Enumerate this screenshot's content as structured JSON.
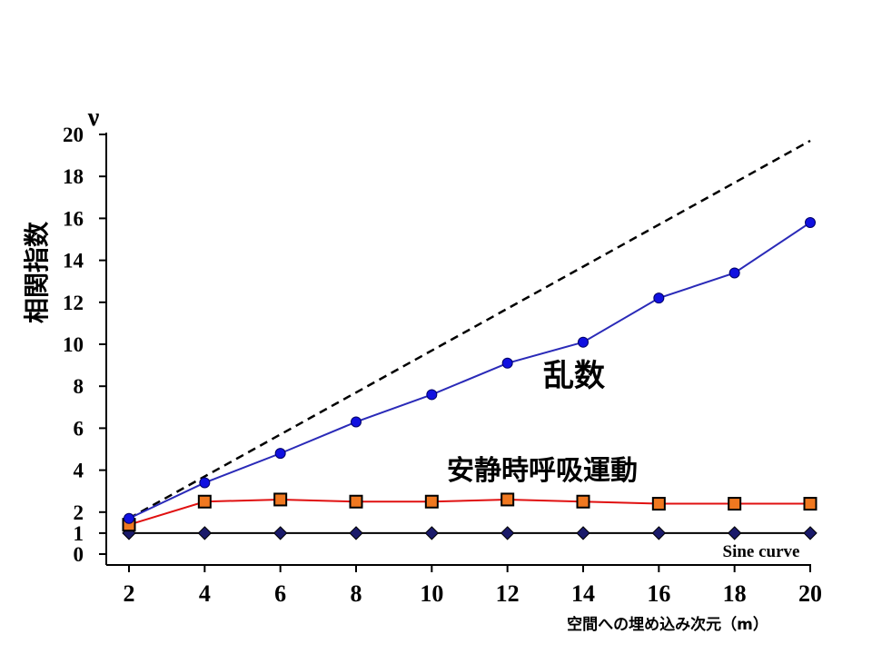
{
  "chart_data": {
    "type": "line",
    "xlabel": "空間への埋め込み次元（m）",
    "ylabel": "相関指数",
    "y_symbol": "ν",
    "xlim": [
      2,
      20
    ],
    "ylim": [
      0,
      20
    ],
    "x_ticks": [
      2,
      4,
      6,
      8,
      10,
      12,
      14,
      16,
      18,
      20
    ],
    "y_ticks": [
      0,
      1,
      2,
      4,
      6,
      8,
      10,
      12,
      14,
      16,
      18,
      20
    ],
    "grid": false,
    "series": [
      {
        "name": "乱数",
        "color": "#2a2ab8",
        "marker": "circle",
        "marker_color": "#1010e0",
        "x": [
          2,
          4,
          6,
          8,
          10,
          12,
          14,
          16,
          18,
          20
        ],
        "y": [
          1.7,
          3.4,
          4.8,
          6.3,
          7.6,
          9.1,
          10.1,
          12.2,
          13.4,
          15.8
        ]
      },
      {
        "name": "安静時呼吸運動",
        "color": "#e01010",
        "marker": "square",
        "marker_color": "#f07820",
        "x": [
          2,
          4,
          6,
          8,
          10,
          12,
          14,
          16,
          18,
          20
        ],
        "y": [
          1.4,
          2.5,
          2.6,
          2.5,
          2.5,
          2.6,
          2.5,
          2.4,
          2.4,
          2.4
        ]
      },
      {
        "name": "Sine curve",
        "color": "#000000",
        "marker": "diamond",
        "marker_color": "#1a1a6a",
        "x": [
          2,
          4,
          6,
          8,
          10,
          12,
          14,
          16,
          18,
          20
        ],
        "y": [
          1,
          1,
          1,
          1,
          1,
          1,
          1,
          1,
          1,
          1
        ]
      }
    ],
    "reference_line": {
      "style": "dashed",
      "color": "#000000",
      "x": [
        2,
        20
      ],
      "y": [
        1.7,
        19.7
      ]
    }
  }
}
